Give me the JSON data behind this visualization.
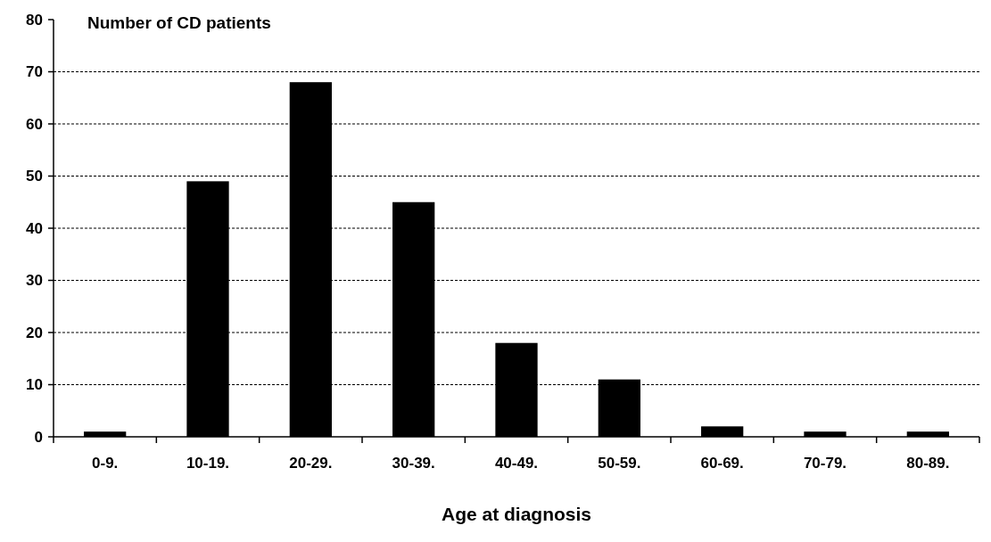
{
  "chart_data": {
    "type": "bar",
    "ylabel": "Number of CD patients",
    "xlabel": "Age at diagnosis",
    "categories": [
      "0-9.",
      "10-19.",
      "20-29.",
      "30-39.",
      "40-49.",
      "50-59.",
      "60-69.",
      "70-79.",
      "80-89."
    ],
    "values": [
      1,
      49,
      68,
      45,
      18,
      11,
      2,
      1,
      1
    ],
    "color": "#000000",
    "ylim": [
      0,
      80
    ],
    "yticks": [
      0,
      10,
      20,
      30,
      40,
      50,
      60,
      70,
      80
    ],
    "grid": "y"
  }
}
